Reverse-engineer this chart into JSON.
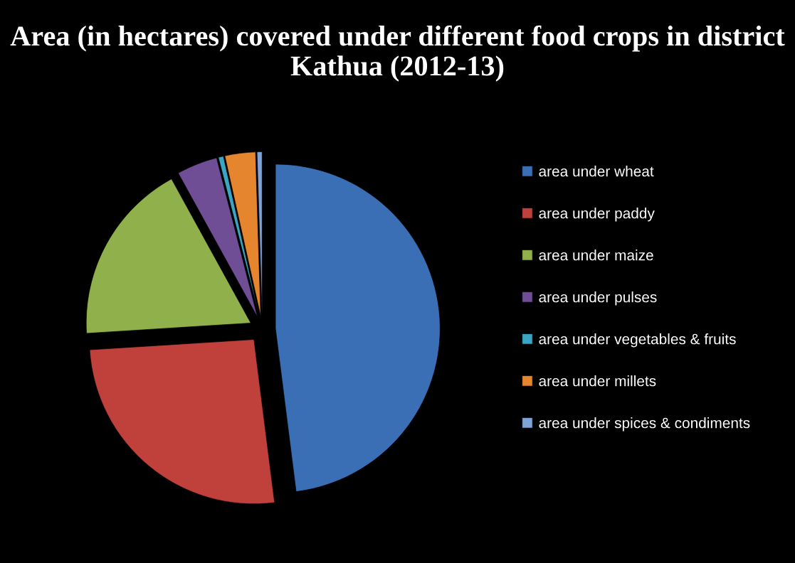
{
  "chart_data": {
    "type": "pie",
    "title": "Area (in hectares) covered under different food crops in district Kathua (2012-13)",
    "categories": [
      "area under wheat",
      "area under paddy",
      "area under maize",
      "area under pulses",
      "area under vegetables & fruits",
      "area under millets",
      "area under spices & condiments"
    ],
    "values": [
      48,
      26,
      18,
      4,
      0.5,
      3,
      0.5
    ],
    "colors": [
      "#3a6fb5",
      "#c0403c",
      "#8fb04a",
      "#6f4e96",
      "#3aa6c4",
      "#e5862f",
      "#7fa3d6"
    ],
    "legend": "right"
  }
}
